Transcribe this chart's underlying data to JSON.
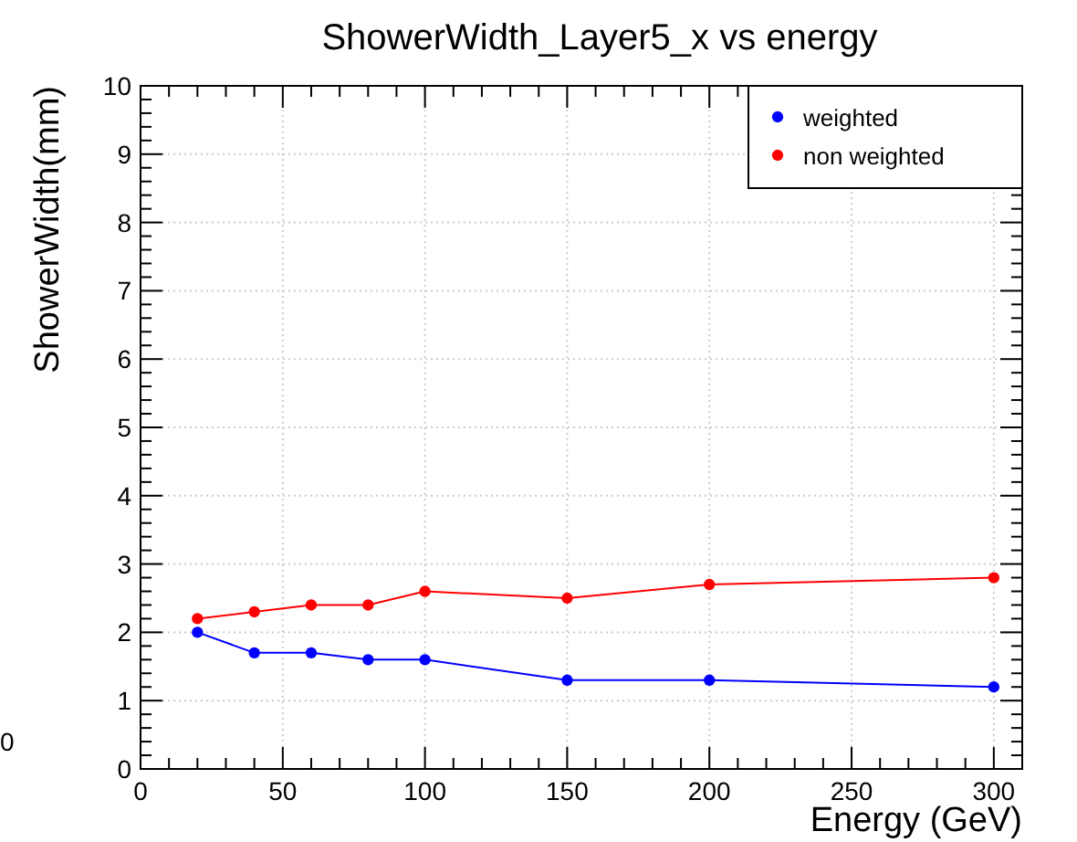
{
  "chart_data": {
    "type": "line",
    "title": "ShowerWidth_Layer5_x vs energy",
    "xlabel": "Energy (GeV)",
    "ylabel": "ShowerWidth(mm)",
    "x": [
      20,
      40,
      60,
      80,
      100,
      150,
      200,
      300
    ],
    "series": [
      {
        "name": "weighted",
        "color": "#0000ff",
        "values": [
          2.0,
          1.7,
          1.7,
          1.6,
          1.6,
          1.3,
          1.3,
          1.2
        ]
      },
      {
        "name": "non weighted",
        "color": "#ff0000",
        "values": [
          2.2,
          2.3,
          2.4,
          2.4,
          2.6,
          2.5,
          2.7,
          2.8
        ]
      }
    ],
    "xlim": [
      0,
      310
    ],
    "ylim": [
      0,
      10
    ],
    "xticks": [
      0,
      50,
      100,
      150,
      200,
      250,
      300
    ],
    "yticks": [
      0,
      1,
      2,
      3,
      4,
      5,
      6,
      7,
      8,
      9,
      10
    ],
    "grid": true,
    "legend": "top right",
    "marker": "circle",
    "line_style": "solid",
    "annotations": [
      "0"
    ]
  }
}
